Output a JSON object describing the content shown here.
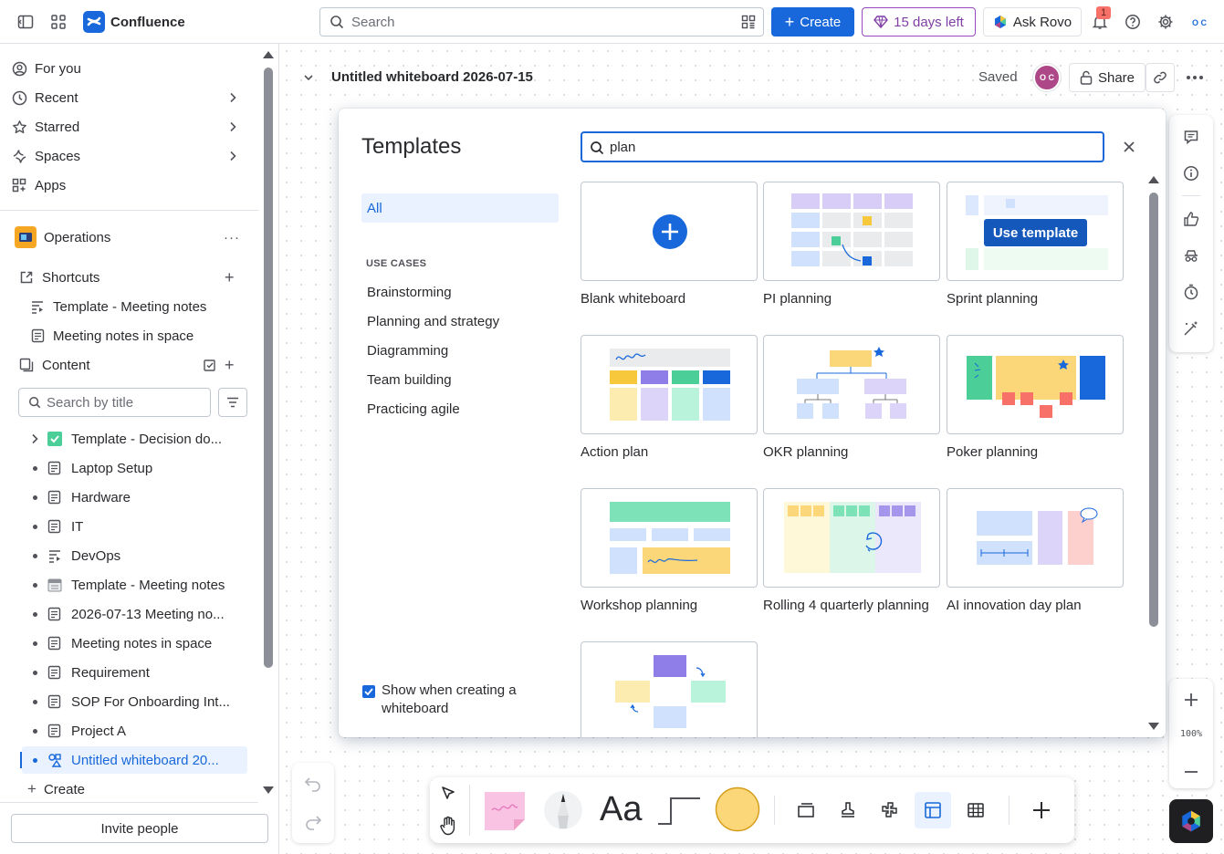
{
  "app": {
    "name": "Confluence"
  },
  "topbar": {
    "search_placeholder": "Search",
    "create_label": "Create",
    "trial_label": "15 days left",
    "rovo_label": "Ask Rovo",
    "notification_count": "1",
    "avatar_initials": "O C"
  },
  "sidebar": {
    "nav": [
      {
        "label": "For you"
      },
      {
        "label": "Recent"
      },
      {
        "label": "Starred"
      },
      {
        "label": "Spaces"
      },
      {
        "label": "Apps"
      }
    ],
    "space_name": "Operations",
    "shortcuts_label": "Shortcuts",
    "shortcuts": [
      {
        "label": "Template - Meeting notes"
      },
      {
        "label": "Meeting notes in space"
      }
    ],
    "content_label": "Content",
    "filter_placeholder": "Search by title",
    "tree": [
      {
        "label": "Template - Decision do..."
      },
      {
        "label": "Laptop Setup"
      },
      {
        "label": "Hardware"
      },
      {
        "label": "IT"
      },
      {
        "label": "DevOps"
      },
      {
        "label": "Template - Meeting notes"
      },
      {
        "label": "2026-07-13 Meeting no..."
      },
      {
        "label": "Meeting notes in space"
      },
      {
        "label": "Requirement"
      },
      {
        "label": "SOP For Onboarding Int..."
      },
      {
        "label": "Project A"
      },
      {
        "label": "Untitled whiteboard 20..."
      }
    ],
    "create_label": "Create",
    "invite_label": "Invite people"
  },
  "whiteboard": {
    "title": "Untitled whiteboard 2026-07-15",
    "status": "Saved",
    "user_initials": "O C",
    "share_label": "Share",
    "zoom": "100%"
  },
  "modal": {
    "title": "Templates",
    "search_value": "plan",
    "category_all": "All",
    "use_cases_heading": "USE CASES",
    "categories": [
      {
        "label": "Brainstorming"
      },
      {
        "label": "Planning and strategy"
      },
      {
        "label": "Diagramming"
      },
      {
        "label": "Team building"
      },
      {
        "label": "Practicing agile"
      }
    ],
    "templates": [
      {
        "name": "Blank whiteboard"
      },
      {
        "name": "PI planning"
      },
      {
        "name": "Sprint planning"
      },
      {
        "name": "Action plan"
      },
      {
        "name": "OKR planning"
      },
      {
        "name": "Poker planning"
      },
      {
        "name": "Workshop planning"
      },
      {
        "name": "Rolling 4 quarterly planning"
      },
      {
        "name": "AI innovation day plan"
      }
    ],
    "use_template_label": "Use template",
    "show_when_creating": "Show when creating a whiteboard"
  },
  "toolbar": {
    "text_tool_label": "Aa"
  },
  "colors": {
    "brand": "#1868db",
    "accent_purple": "#803fa5",
    "selection_bg": "#e9f2fe"
  }
}
